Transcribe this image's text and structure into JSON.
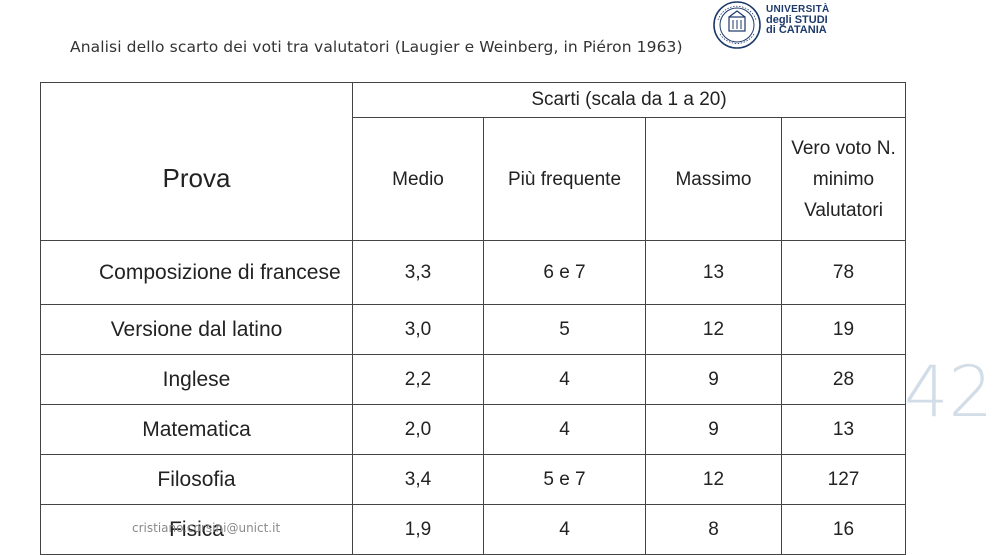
{
  "header": {
    "title": "Analisi dello scarto dei voti tra valutatori (Laugier e Weinberg, in Piéron 1963)",
    "logo": {
      "line1": "UNIVERSITÀ",
      "line2": "degli STUDI",
      "line3": "di CATANIA",
      "seal_icon": "university-seal-icon",
      "brand_color": "#1d3a6b"
    }
  },
  "table": {
    "group_header": "Scarti (scala da 1 a 20)",
    "row_header": "Prova",
    "columns": [
      "Medio",
      "Più frequente",
      "Massimo",
      "Vero voto N. minimo Valutatori"
    ],
    "rows": [
      {
        "prova": "Composizione di francese",
        "medio": "3,3",
        "frequente": "6 e 7",
        "massimo": "13",
        "valutatori": "78"
      },
      {
        "prova": "Versione dal latino",
        "medio": "3,0",
        "frequente": "5",
        "massimo": "12",
        "valutatori": "19"
      },
      {
        "prova": "Inglese",
        "medio": "2,2",
        "frequente": "4",
        "massimo": "9",
        "valutatori": "28"
      },
      {
        "prova": "Matematica",
        "medio": "2,0",
        "frequente": "4",
        "massimo": "9",
        "valutatori": "13"
      },
      {
        "prova": "Filosofia",
        "medio": "3,4",
        "frequente": "5 e 7",
        "massimo": "12",
        "valutatori": "127"
      },
      {
        "prova": "Fisica",
        "medio": "1,9",
        "frequente": "4",
        "massimo": "8",
        "valutatori": "16"
      }
    ]
  },
  "page_number": "42",
  "footer": {
    "email": "cristiano.corsini@unict.it"
  }
}
